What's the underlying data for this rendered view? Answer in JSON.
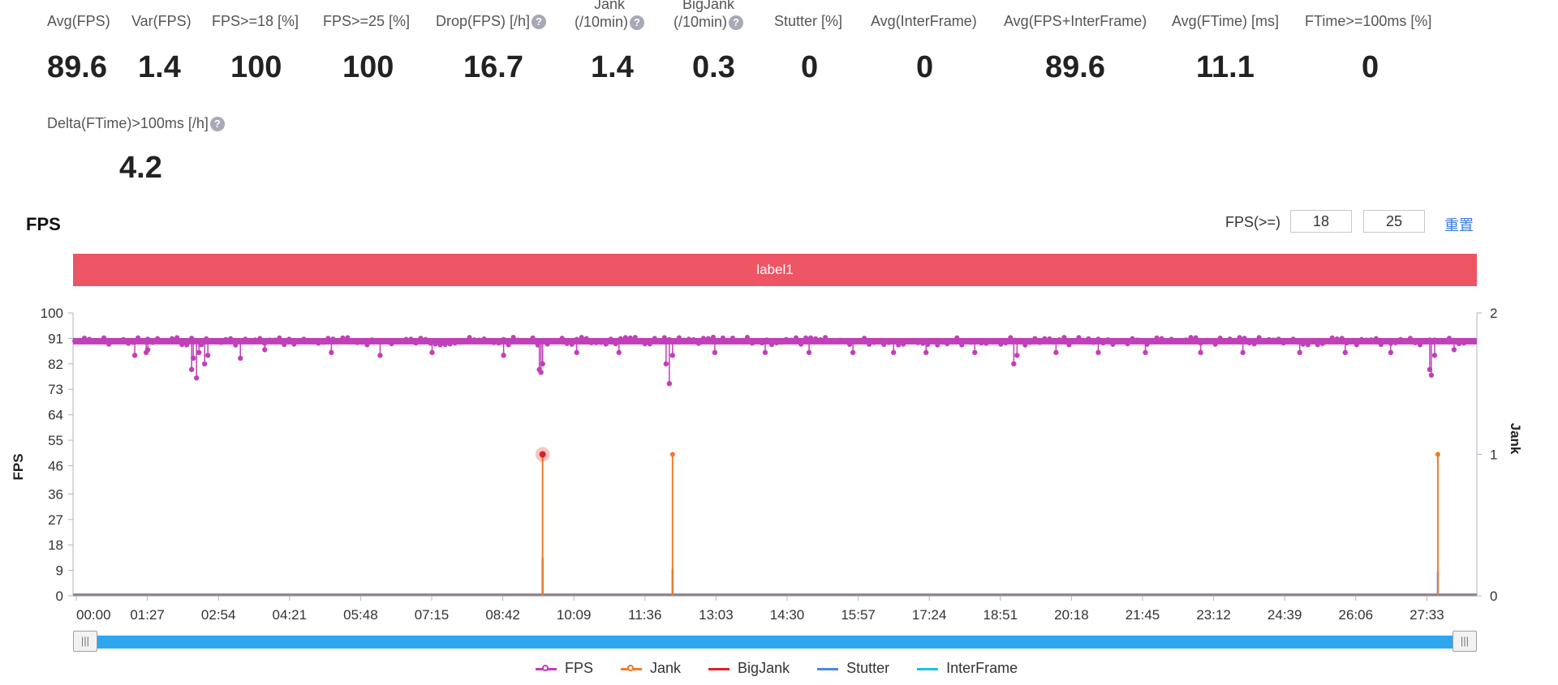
{
  "stats": [
    {
      "label": "Avg(FPS)",
      "value": "89.6"
    },
    {
      "label": "Var(FPS)",
      "value": "1.4"
    },
    {
      "label": "FPS>=18 [%]",
      "value": "100"
    },
    {
      "label": "FPS>=25 [%]",
      "value": "100"
    },
    {
      "label": "Drop(FPS) [/h]",
      "value": "16.7",
      "help": true
    },
    {
      "label": "Jank\n(/10min)",
      "value": "1.4",
      "help": true
    },
    {
      "label": "BigJank\n(/10min)",
      "value": "0.3",
      "help": true
    },
    {
      "label": "Stutter [%]",
      "value": "0"
    },
    {
      "label": "Avg(InterFrame)",
      "value": "0"
    },
    {
      "label": "Avg(FPS+InterFrame)",
      "value": "89.6"
    },
    {
      "label": "Avg(FTime) [ms]",
      "value": "11.1"
    },
    {
      "label": "FTime>=100ms [%]",
      "value": "0"
    },
    {
      "label": "Delta(FTime)>100ms [/h]",
      "value": "4.2",
      "help": true
    }
  ],
  "help_glyph": "?",
  "section": {
    "title": "FPS"
  },
  "threshold": {
    "label": "FPS(>=)",
    "low": "18",
    "high": "25",
    "reset_label": "重置"
  },
  "label_bar": "label1",
  "zoom": {
    "handle_glyph": "|||",
    "range": [
      0,
      1
    ]
  },
  "colors": {
    "fps": "#c040b8",
    "jank": "#f07a2a",
    "bigjank": "#e02020",
    "stutter": "#4a88e0",
    "interframe": "#20c0e0",
    "label_bar": "#ed5565",
    "zoom": "#2ea7f0"
  },
  "chart_data": {
    "type": "line",
    "title": "",
    "ylabel": "FPS",
    "y2label": "Jank",
    "ylim": [
      0,
      100
    ],
    "y2lim": [
      0,
      2
    ],
    "yticks": [
      0,
      9,
      18,
      27,
      36,
      46,
      55,
      64,
      73,
      82,
      91,
      100
    ],
    "y2ticks": [
      0,
      1,
      2
    ],
    "xlim_seconds": [
      0,
      1728
    ],
    "xticks": [
      "00:00",
      "01:27",
      "02:54",
      "04:21",
      "05:48",
      "07:15",
      "08:42",
      "10:09",
      "11:36",
      "13:03",
      "14:30",
      "15:57",
      "17:24",
      "18:51",
      "20:18",
      "21:45",
      "23:12",
      "24:39",
      "26:06",
      "27:33"
    ],
    "legend_position": "bottom",
    "series": [
      {
        "name": "FPS",
        "axis": "left",
        "baseline": 90,
        "dips": [
          {
            "x": 76,
            "y": 85
          },
          {
            "x": 90,
            "y": 86
          },
          {
            "x": 92,
            "y": 87
          },
          {
            "x": 146,
            "y": 80
          },
          {
            "x": 148,
            "y": 84
          },
          {
            "x": 152,
            "y": 77
          },
          {
            "x": 155,
            "y": 86
          },
          {
            "x": 162,
            "y": 82
          },
          {
            "x": 166,
            "y": 85
          },
          {
            "x": 206,
            "y": 84
          },
          {
            "x": 236,
            "y": 87
          },
          {
            "x": 318,
            "y": 86
          },
          {
            "x": 378,
            "y": 85
          },
          {
            "x": 442,
            "y": 86
          },
          {
            "x": 530,
            "y": 85
          },
          {
            "x": 574,
            "y": 80
          },
          {
            "x": 576,
            "y": 79
          },
          {
            "x": 578,
            "y": 82
          },
          {
            "x": 620,
            "y": 86
          },
          {
            "x": 672,
            "y": 86
          },
          {
            "x": 730,
            "y": 82
          },
          {
            "x": 734,
            "y": 75
          },
          {
            "x": 738,
            "y": 85
          },
          {
            "x": 790,
            "y": 86
          },
          {
            "x": 852,
            "y": 86
          },
          {
            "x": 906,
            "y": 86
          },
          {
            "x": 960,
            "y": 86
          },
          {
            "x": 1010,
            "y": 86
          },
          {
            "x": 1050,
            "y": 86
          },
          {
            "x": 1110,
            "y": 86
          },
          {
            "x": 1158,
            "y": 82
          },
          {
            "x": 1162,
            "y": 85
          },
          {
            "x": 1210,
            "y": 86
          },
          {
            "x": 1262,
            "y": 86
          },
          {
            "x": 1320,
            "y": 86
          },
          {
            "x": 1388,
            "y": 86
          },
          {
            "x": 1440,
            "y": 86
          },
          {
            "x": 1510,
            "y": 86
          },
          {
            "x": 1566,
            "y": 86
          },
          {
            "x": 1622,
            "y": 86
          },
          {
            "x": 1670,
            "y": 80
          },
          {
            "x": 1672,
            "y": 78
          },
          {
            "x": 1676,
            "y": 85
          },
          {
            "x": 1700,
            "y": 87
          }
        ]
      },
      {
        "name": "Jank",
        "axis": "right",
        "baseline": 0,
        "points": [
          {
            "x": 578,
            "y": 1
          },
          {
            "x": 738,
            "y": 1
          },
          {
            "x": 1680,
            "y": 1
          }
        ]
      },
      {
        "name": "BigJank",
        "axis": "right",
        "baseline": 0,
        "points": []
      },
      {
        "name": "Stutter",
        "axis": "right",
        "baseline": 0,
        "points": [
          {
            "x": 578,
            "y": 0.27
          },
          {
            "x": 738,
            "y": 0.19
          },
          {
            "x": 1680,
            "y": 0.17
          }
        ]
      },
      {
        "name": "InterFrame",
        "axis": "right",
        "baseline": 0,
        "points": []
      }
    ],
    "highlight": {
      "series": "BigJank",
      "x": 578,
      "y": 1
    }
  }
}
